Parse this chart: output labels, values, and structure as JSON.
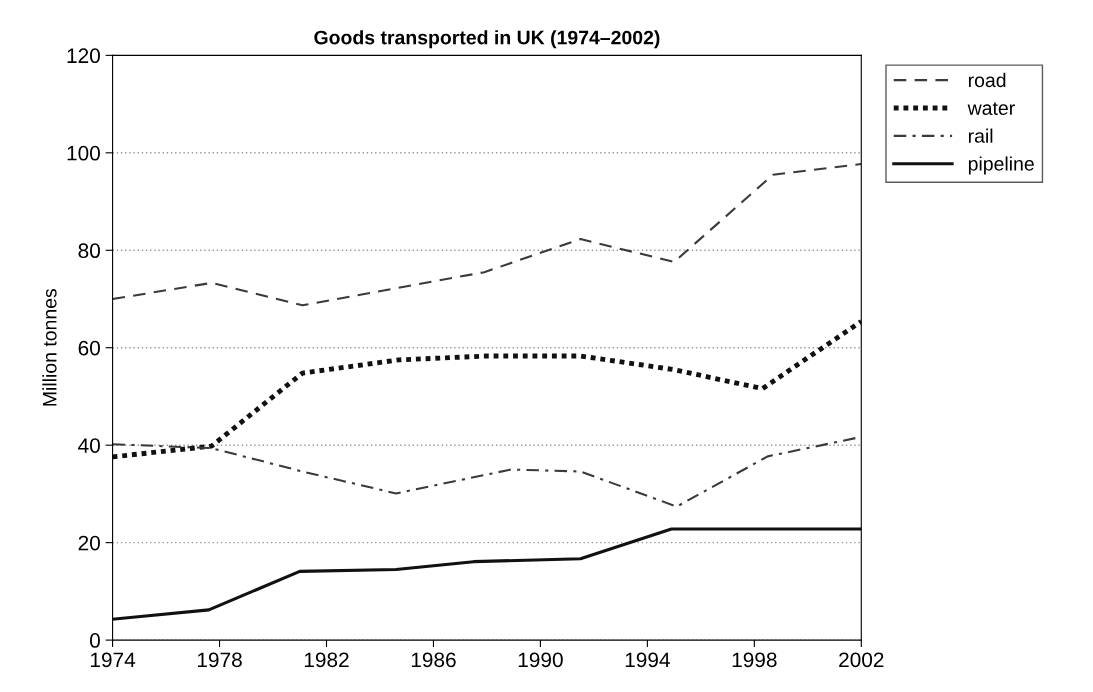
{
  "chart_data": {
    "type": "line",
    "title": "Goods transported in UK (1974–2002)",
    "ylabel": "Million tonnes",
    "xlim": [
      1974,
      2002
    ],
    "xticks": [
      1974,
      1978,
      1982,
      1986,
      1990,
      1994,
      1998,
      2002
    ],
    "ylim": [
      0,
      120
    ],
    "yticks": [
      0,
      20,
      40,
      60,
      80,
      100,
      120
    ],
    "grid": "y",
    "legend": "top right",
    "marker": "none",
    "series": [
      {
        "name": "road",
        "color": "#3a3a3a",
        "line_style": "dashed",
        "x": [
          1974,
          1977.7,
          1981.1,
          1987.9,
          1991.5,
          1995.0,
          1998.7,
          2002
        ],
        "values": [
          70,
          73.3,
          68.7,
          75.5,
          82.3,
          77.6,
          95.5,
          97.7
        ]
      },
      {
        "name": "water",
        "color": "#111111",
        "line_style": "dotted",
        "x": [
          1974,
          1977.7,
          1981.1,
          1984.7,
          1988,
          1991.5,
          1995.0,
          1998.3,
          2002
        ],
        "values": [
          37.6,
          39.8,
          54.8,
          57.5,
          58.3,
          58.3,
          55.5,
          51.6,
          65.4
        ]
      },
      {
        "name": "rail",
        "color": "#3a3a3a",
        "line_style": "dashdot",
        "x": [
          1974,
          1977.7,
          1981.1,
          1984.6,
          1988.9,
          1991.5,
          1995.1,
          1998.5,
          2002
        ],
        "values": [
          40.2,
          39.4,
          34.6,
          30.1,
          35.0,
          34.6,
          27.4,
          37.7,
          41.7
        ]
      },
      {
        "name": "pipeline",
        "color": "#111111",
        "line_style": "solid",
        "x": [
          1974,
          1977.6,
          1981,
          1984.6,
          1987.5,
          1991.5,
          1994.9,
          2002
        ],
        "values": [
          4.3,
          6.2,
          14.1,
          14.5,
          16.1,
          16.7,
          22.8,
          22.8
        ]
      }
    ]
  }
}
